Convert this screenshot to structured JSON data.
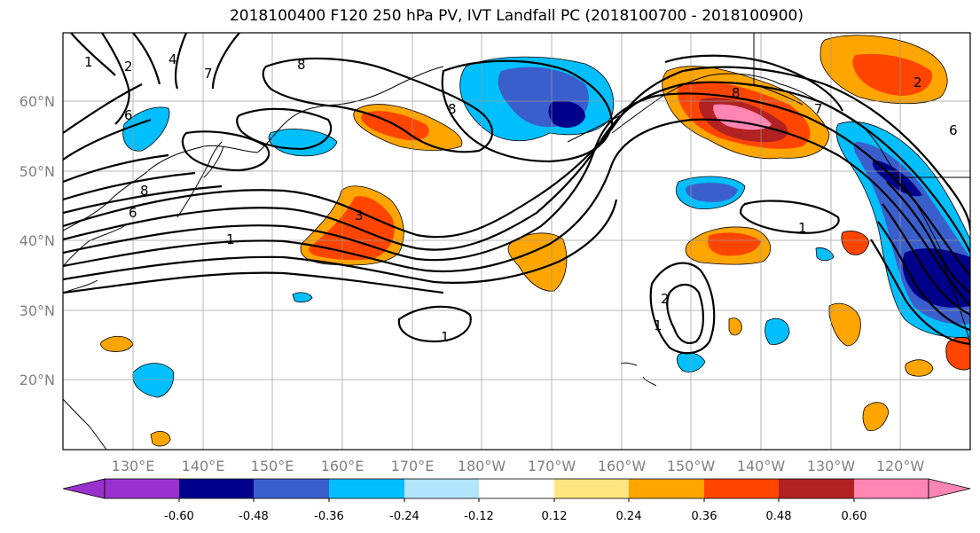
{
  "title": "2018100400 F120 250 hPa PV, IVT Landfall PC (2018100700 - 2018100900)",
  "lat_labels": [
    "60°N",
    "50°N",
    "40°N",
    "30°N",
    "20°N"
  ],
  "lon_labels": [
    "130°E",
    "140°E",
    "150°E",
    "160°E",
    "170°E",
    "180°W",
    "170°W",
    "160°W",
    "150°W",
    "140°W",
    "130°W",
    "120°W"
  ],
  "contour_labels": [
    "1",
    "2",
    "4",
    "7",
    "8",
    "8",
    "6",
    "8",
    "6",
    "3",
    "1",
    "1",
    "2",
    "1",
    "1",
    "8",
    "2",
    "6",
    "7"
  ],
  "colorbar": {
    "ticks": [
      "-0.60",
      "-0.48",
      "-0.36",
      "-0.24",
      "-0.12",
      "0.12",
      "0.24",
      "0.36",
      "0.48",
      "0.60"
    ],
    "colors": [
      "#9932cc",
      "#00008b",
      "#3a5fcd",
      "#00bfff",
      "#b3e5fc",
      "#ffffff",
      "#ffe680",
      "#ffa500",
      "#ff4500",
      "#b22222",
      "#ff85b3",
      "#ff85b3"
    ]
  }
}
